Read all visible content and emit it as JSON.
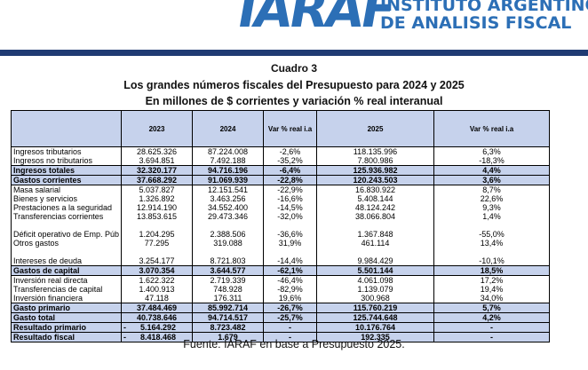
{
  "header": {
    "logo": "IARAF",
    "org_line1": "INSTITUTO ARGENTINO",
    "org_line2": "DE ANALISIS FISCAL"
  },
  "title": {
    "cuadro": "Cuadro 3",
    "line1": "Los grandes números fiscales del Presupuesto para 2024 y 2025",
    "line2": "En millones de $ corrientes y variación % real interanual"
  },
  "table": {
    "headers": [
      "",
      "2023",
      "2024",
      "Var % real i.a",
      "2025",
      "Var % real i.a"
    ],
    "rows": [
      {
        "label": "Ingresos tributarios",
        "c2023": "28.625.326",
        "c2024": "87.224.008",
        "var24": "-2,6%",
        "c2025": "118.135.996",
        "var25": "6,3%"
      },
      {
        "label": "Ingresos no tributarios",
        "c2023": "3.694.851",
        "c2024": "7.492.188",
        "var24": "-35,2%",
        "c2025": "7.800.986",
        "var25": "-18,3%"
      },
      {
        "label": "Ingresos totales",
        "c2023": "32.320.177",
        "c2024": "94.716.196",
        "var24": "-6,4%",
        "c2025": "125.936.982",
        "var25": "4,4%"
      },
      {
        "label": "Gastos corrientes",
        "c2023": "37.668.292",
        "c2024": "91.069.939",
        "var24": "-22,8%",
        "c2025": "120.243.503",
        "var25": "3,6%"
      },
      {
        "label": "Masa salarial",
        "c2023": "5.037.827",
        "c2024": "12.151.541",
        "var24": "-22,9%",
        "c2025": "16.830.922",
        "var25": "8,7%"
      },
      {
        "label": "Bienes y servicios",
        "c2023": "1.326.892",
        "c2024": "3.463.256",
        "var24": "-16,6%",
        "c2025": "5.408.144",
        "var25": "22,6%"
      },
      {
        "label": "Prestaciones a la seguridad",
        "c2023": "12.914.190",
        "c2024": "34.552.400",
        "var24": "-14,5%",
        "c2025": "48.124.242",
        "var25": "9,3%"
      },
      {
        "label": "Transferencias corrientes",
        "c2023": "13.853.615",
        "c2024": "29.473.346",
        "var24": "-32,0%",
        "c2025": "38.066.804",
        "var25": "1,4%"
      },
      {
        "label": "Déficit operativo de Emp. Púb",
        "c2023": "1.204.295",
        "c2024": "2.388.506",
        "var24": "-36,6%",
        "c2025": "1.367.848",
        "var25": "-55,0%"
      },
      {
        "label": "Otros gastos",
        "c2023": "77.295",
        "c2024": "319.088",
        "var24": "31,9%",
        "c2025": "461.114",
        "var25": "13,4%"
      },
      {
        "label": "Intereses de deuda",
        "c2023": "3.254.177",
        "c2024": "8.721.803",
        "var24": "-14,4%",
        "c2025": "9.984.429",
        "var25": "-10,1%"
      },
      {
        "label": "Gastos de capital",
        "c2023": "3.070.354",
        "c2024": "3.644.577",
        "var24": "-62,1%",
        "c2025": "5.501.144",
        "var25": "18,5%"
      },
      {
        "label": "Inversión real directa",
        "c2023": "1.622.322",
        "c2024": "2.719.339",
        "var24": "-46,4%",
        "c2025": "4.061.098",
        "var25": "17,2%"
      },
      {
        "label": "Transferencias de capital",
        "c2023": "1.400.913",
        "c2024": "748.928",
        "var24": "-82,9%",
        "c2025": "1.139.079",
        "var25": "19,4%"
      },
      {
        "label": "Inversión financiera",
        "c2023": "47.118",
        "c2024": "176.311",
        "var24": "19,6%",
        "c2025": "300.968",
        "var25": "34,0%"
      },
      {
        "label": "Gasto primario",
        "c2023": "37.484.469",
        "c2024": "85.992.714",
        "var24": "-26,7%",
        "c2025": "115.760.219",
        "var25": "5,7%"
      },
      {
        "label": "Gasto total",
        "c2023": "40.738.646",
        "c2024": "94.714.517",
        "var24": "-25,7%",
        "c2025": "125.744.648",
        "var25": "4,2%"
      },
      {
        "label": "Resultado primario",
        "c2023": "5.164.292",
        "c2024": "8.723.482",
        "var24": "-",
        "c2025": "10.176.764",
        "var25": "-",
        "neg2023": "-"
      },
      {
        "label": "Resultado fiscal",
        "c2023": "8.418.468",
        "c2024": "1.679",
        "var24": "-",
        "c2025": "192.335",
        "var25": "-",
        "neg2023": "-"
      }
    ]
  },
  "source": "Fuente: IARAF en base a Presupuesto 2025."
}
